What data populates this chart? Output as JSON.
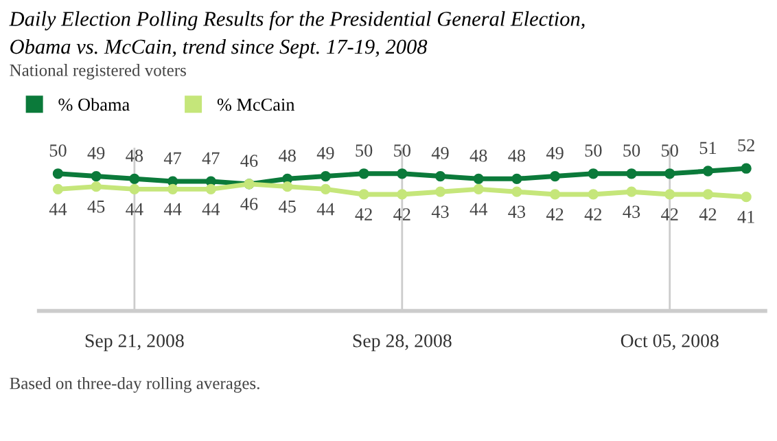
{
  "chart_data": {
    "type": "line",
    "title": "Daily Election Polling Results for the Presidential General Election,\nObama vs. McCain, trend since Sept. 17-19, 2008",
    "subtitle": "National registered voters",
    "x": [
      "2008-09-19",
      "2008-09-20",
      "2008-09-21",
      "2008-09-22",
      "2008-09-23",
      "2008-09-24",
      "2008-09-25",
      "2008-09-26",
      "2008-09-27",
      "2008-09-28",
      "2008-09-29",
      "2008-09-30",
      "2008-10-01",
      "2008-10-02",
      "2008-10-03",
      "2008-10-04",
      "2008-10-05",
      "2008-10-06",
      "2008-10-07"
    ],
    "series": [
      {
        "name": "% Obama",
        "color": "#0b7a3a",
        "values": [
          50,
          49,
          48,
          47,
          47,
          46,
          48,
          49,
          50,
          50,
          49,
          48,
          48,
          49,
          50,
          50,
          50,
          51,
          52
        ]
      },
      {
        "name": "% McCain",
        "color": "#c5e67a",
        "values": [
          44,
          45,
          44,
          44,
          44,
          46,
          45,
          44,
          42,
          42,
          43,
          44,
          43,
          42,
          42,
          43,
          42,
          42,
          41
        ]
      }
    ],
    "xlim": [
      "2008-09-18T12:00",
      "2008-10-07T12:00"
    ],
    "xticks": [
      {
        "value": "2008-09-21",
        "label": "Sep 21, 2008"
      },
      {
        "value": "2008-09-28",
        "label": "Sep 28, 2008"
      },
      {
        "value": "2008-10-05",
        "label": "Oct 05, 2008"
      }
    ],
    "ylim": [
      -3,
      60
    ],
    "tick_labels": "x",
    "grid": "x",
    "legend": "top left",
    "marker": "circle",
    "line_style": "solid",
    "data_labels": true,
    "annotations": [
      "Based on three-day rolling averages."
    ]
  }
}
